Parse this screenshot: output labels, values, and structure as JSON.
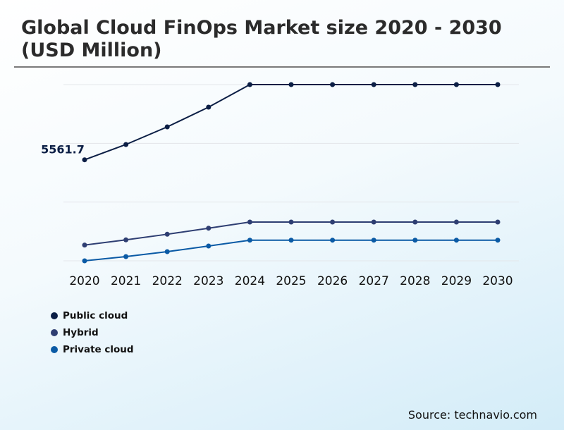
{
  "chart_data": {
    "type": "line",
    "title": "Global Cloud FinOps Market size 2020 - 2030 (USD Million)",
    "categories": [
      "2020",
      "2021",
      "2022",
      "2023",
      "2024",
      "2025",
      "2026",
      "2027",
      "2028",
      "2029",
      "2030"
    ],
    "series": [
      {
        "name": "Public cloud",
        "color": "#0b1e45",
        "values": [
          5561.7,
          6404,
          7374,
          8461,
          9703,
          9703,
          9703,
          9703,
          9703,
          9703,
          9703
        ]
      },
      {
        "name": "Hybrid",
        "color": "#2e3e72",
        "values": [
          866,
          1153,
          1463,
          1797,
          2135,
          2135,
          2135,
          2135,
          2135,
          2135,
          2135
        ]
      },
      {
        "name": "Private cloud",
        "color": "#0a5aa5",
        "values": [
          0,
          233,
          505,
          815,
          1137,
          1137,
          1137,
          1137,
          1137,
          1137,
          1137
        ]
      }
    ],
    "data_labels": [
      {
        "series": "Public cloud",
        "category": "2020",
        "text": "5561.7"
      }
    ],
    "ylim": [
      0,
      9703
    ],
    "grid": true,
    "y_axis_labels": false,
    "legend_placement": "bottom-left"
  },
  "source": "Source: technavio.com"
}
